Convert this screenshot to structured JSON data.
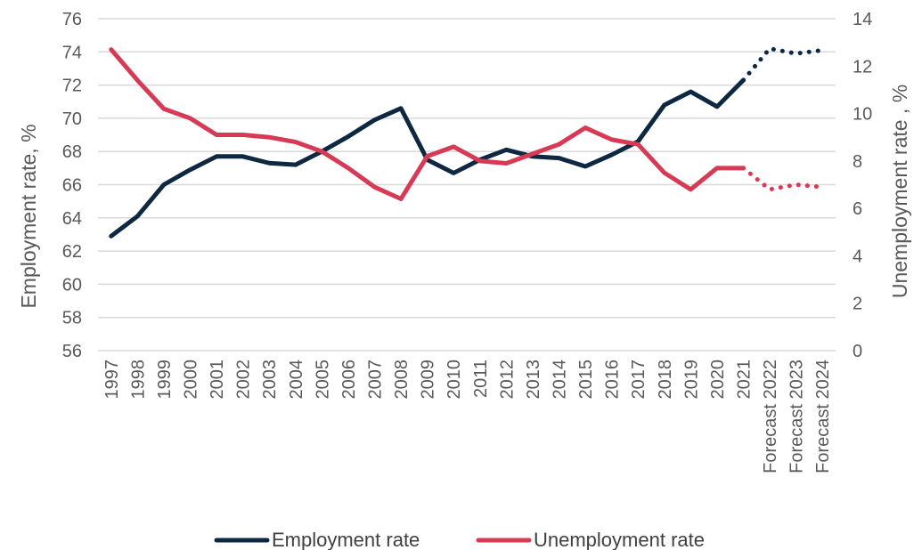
{
  "chart_data": {
    "type": "line",
    "categories": [
      "1997",
      "1998",
      "1999",
      "2000",
      "2001",
      "2002",
      "2003",
      "2004",
      "2005",
      "2006",
      "2007",
      "2008",
      "2009",
      "2010",
      "2011",
      "2012",
      "2013",
      "2014",
      "2015",
      "2016",
      "2017",
      "2018",
      "2019",
      "2020",
      "2021",
      "Forecast 2022",
      "Forecast 2023",
      "Forecast 2024"
    ],
    "ylabel_left": "Employment rate, %",
    "ylabel_right": "Unemployment rate , %",
    "ylim_left": [
      56,
      76
    ],
    "ylim_right": [
      0,
      14
    ],
    "yticks_left": [
      "56",
      "58",
      "60",
      "62",
      "64",
      "66",
      "68",
      "70",
      "72",
      "74",
      "76"
    ],
    "yticks_right": [
      "0",
      "2",
      "4",
      "6",
      "8",
      "10",
      "12",
      "14"
    ],
    "grid": true,
    "legend_position": "bottom",
    "forecast_style": "dotted",
    "series": [
      {
        "name": "Employment rate",
        "axis": "left",
        "color": "#0e2841",
        "values": [
          62.9,
          64.1,
          66.0,
          66.9,
          67.7,
          67.7,
          67.3,
          67.2,
          68.0,
          68.9,
          69.9,
          70.6,
          67.5,
          66.7,
          67.5,
          68.1,
          67.7,
          67.6,
          67.1,
          67.8,
          68.6,
          70.8,
          71.6,
          70.7,
          72.3,
          74.2,
          73.9,
          74.1
        ],
        "forecast_from_index": 24
      },
      {
        "name": "Unemployment rate",
        "axis": "right",
        "color": "#d63a55",
        "values": [
          12.7,
          11.4,
          10.2,
          9.8,
          9.1,
          9.1,
          9.0,
          8.8,
          8.4,
          7.7,
          6.9,
          6.4,
          8.2,
          8.6,
          8.0,
          7.9,
          8.3,
          8.7,
          9.4,
          8.9,
          8.7,
          7.5,
          6.8,
          7.7,
          7.7,
          6.8,
          7.0,
          6.9
        ],
        "forecast_from_index": 24
      }
    ]
  }
}
